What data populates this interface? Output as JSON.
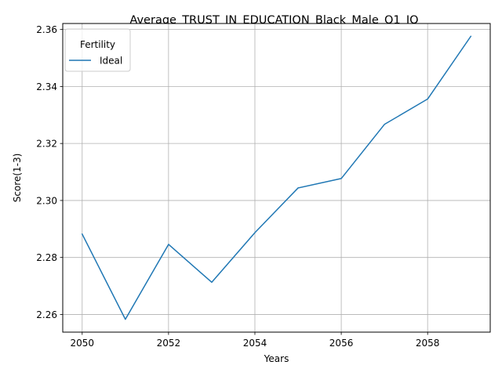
{
  "chart_data": {
    "type": "line",
    "title": "Average_TRUST_IN_EDUCATION_Black_Male_Q1_IQ",
    "xlabel": "Years",
    "ylabel": "Score(1-3)",
    "x": [
      2050,
      2051,
      2052,
      2053,
      2054,
      2055,
      2056,
      2057,
      2058,
      2059
    ],
    "series": [
      {
        "name": "Ideal",
        "color": "#1f77b4",
        "values": [
          2.2882,
          2.2583,
          2.2846,
          2.2713,
          2.2887,
          2.3044,
          2.3077,
          2.3267,
          2.3356,
          2.3576
        ]
      }
    ],
    "xlim": [
      2049.55,
      2059.45
    ],
    "ylim": [
      2.2538,
      2.3621
    ],
    "xticks": [
      2050,
      2052,
      2054,
      2056,
      2058
    ],
    "yticks": [
      2.26,
      2.28,
      2.3,
      2.32,
      2.34,
      2.36
    ],
    "ytick_labels": [
      "2.26",
      "2.28",
      "2.30",
      "2.32",
      "2.34",
      "2.36"
    ],
    "grid": true,
    "legend": {
      "title": "Fertility",
      "placement": "upper-left"
    }
  }
}
